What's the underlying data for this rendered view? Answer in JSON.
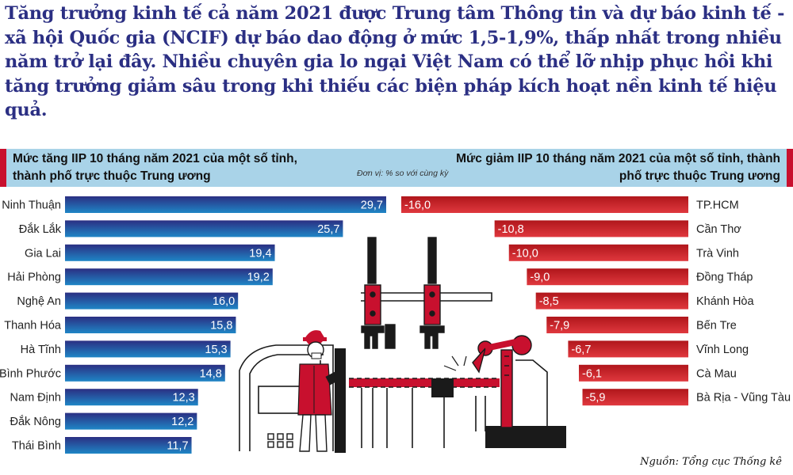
{
  "lead_text": "Tăng trưởng kinh tế cả năm 2021 được Trung tâm Thông tin và dự báo kinh tế - xã hội Quốc gia (NCIF) dự báo dao động ở mức 1,5-1,9%, thấp nhất trong nhiều năm trở lại đây. Nhiều chuyên gia lo ngại Việt Nam có thể lỡ nhịp phục hồi khi tăng trưởng giảm sâu trong khi thiếu các biện pháp kích hoạt nền kinh tế hiệu quả.",
  "unit_note": "Đơn vị: % so với cùng kỳ",
  "source": "Nguồn: Tổng cục Thống kê",
  "colors": {
    "accent": "#c8102e",
    "header_band": "#a9d3e8",
    "increase_dark": "#2b2f83",
    "increase_light": "#1f86c6",
    "decrease_light": "#e0383e",
    "decrease_dark": "#b0161b"
  },
  "chart_data": [
    {
      "type": "bar",
      "orientation": "horizontal",
      "title": "Mức tăng IIP 10 tháng năm 2021 của một số tỉnh, thành phố trực thuộc Trung ương",
      "categories": [
        "Ninh Thuận",
        "Đắk Lắk",
        "Gia Lai",
        "Hải Phòng",
        "Nghệ An",
        "Thanh Hóa",
        "Hà Tĩnh",
        "Bình Phước",
        "Nam Định",
        "Đắk Nông",
        "Thái Bình"
      ],
      "values": [
        29.7,
        25.7,
        19.4,
        19.2,
        16.0,
        15.8,
        15.3,
        14.8,
        12.3,
        12.2,
        11.7
      ],
      "value_labels": [
        "29,7",
        "25,7",
        "19,4",
        "19,2",
        "16,0",
        "15,8",
        "15,3",
        "14,8",
        "12,3",
        "12,2",
        "11,7"
      ],
      "xlim": [
        0,
        29.7
      ]
    },
    {
      "type": "bar",
      "orientation": "horizontal",
      "title": "Mức giảm IIP 10 tháng năm 2021 của một số tỉnh, thành phố trực thuộc Trung ương",
      "categories": [
        "TP.HCM",
        "Cần Thơ",
        "Trà Vinh",
        "Đồng Tháp",
        "Khánh Hòa",
        "Bến Tre",
        "Vĩnh Long",
        "Cà Mau",
        "Bà Rịa - Vũng Tàu"
      ],
      "values": [
        -16.0,
        -10.8,
        -10.0,
        -9.0,
        -8.5,
        -7.9,
        -6.7,
        -6.1,
        -5.9
      ],
      "value_labels": [
        "-16,0",
        "-10,8",
        "-10,0",
        "-9,0",
        "-8,5",
        "-7,9",
        "-6,7",
        "-6,1",
        "-5,9"
      ],
      "xlim": [
        -16.0,
        0
      ]
    }
  ]
}
